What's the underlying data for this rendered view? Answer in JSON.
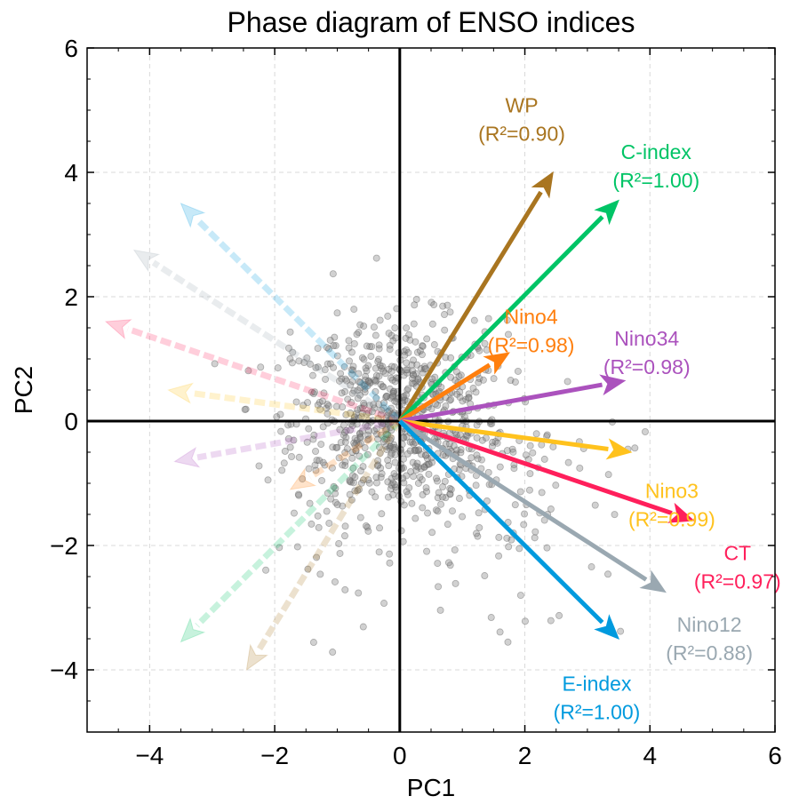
{
  "chart_data": {
    "type": "scatter",
    "title": "Phase diagram of ENSO indices",
    "xlabel": "PC1",
    "ylabel": "PC2",
    "xlim": [
      -5,
      6
    ],
    "ylim": [
      -5,
      6
    ],
    "xticks": [
      -4,
      -2,
      0,
      2,
      4,
      6
    ],
    "yticks": [
      -4,
      -2,
      0,
      2,
      4,
      6
    ],
    "xtick_labels": [
      "−4",
      "−2",
      "0",
      "2",
      "4",
      "6"
    ],
    "ytick_labels": [
      "−4",
      "−2",
      "0",
      "2",
      "4",
      "6"
    ],
    "grid": true,
    "vectors": [
      {
        "name": "WP",
        "r2_label": "(R²=0.90)",
        "x": 2.45,
        "y": 4.0,
        "color": "#a97520"
      },
      {
        "name": "C-index",
        "r2_label": "(R²=1.00)",
        "x": 3.5,
        "y": 3.55,
        "color": "#00c466"
      },
      {
        "name": "Nino4",
        "r2_label": "(R²=0.98)",
        "x": 1.75,
        "y": 1.1,
        "color": "#ff7f0e"
      },
      {
        "name": "Nino34",
        "r2_label": "(R²=0.98)",
        "x": 3.6,
        "y": 0.65,
        "color": "#ab52bd"
      },
      {
        "name": "Nino3",
        "r2_label": "(R²=0.99)",
        "x": 3.7,
        "y": -0.5,
        "color": "#ffc21d"
      },
      {
        "name": "CT",
        "r2_label": "(R²=0.97)",
        "x": 4.7,
        "y": -1.6,
        "color": "#ff1f5b"
      },
      {
        "name": "Nino12",
        "r2_label": "(R²=0.88)",
        "x": 4.25,
        "y": -2.75,
        "color": "#9aa8b1"
      },
      {
        "name": "E-index",
        "r2_label": "(R²=1.00)",
        "x": 3.5,
        "y": -3.5,
        "color": "#009ade"
      }
    ],
    "scatter_color": "#808080",
    "axis_line_color": "#000000"
  }
}
